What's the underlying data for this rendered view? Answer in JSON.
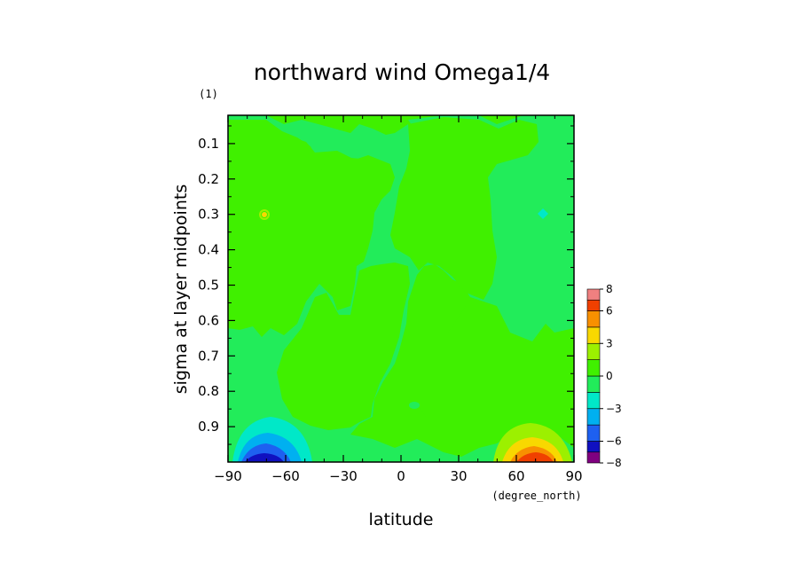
{
  "chart_data": {
    "type": "heatmap",
    "title": "northward wind Omega1/4",
    "xlabel": "latitude",
    "xunits": "(degree_north)",
    "ylabel": "sigma at layer midpoints",
    "yunits": "(1)",
    "x_ticks": [
      "-90",
      "-60",
      "-30",
      "0",
      "30",
      "60",
      "90"
    ],
    "y_ticks": [
      "0.1",
      "0.2",
      "0.3",
      "0.4",
      "0.5",
      "0.6",
      "0.7",
      "0.8",
      "0.9"
    ],
    "xlim": [
      -90,
      90
    ],
    "ylim": [
      1.0,
      0.02
    ],
    "y_inverted": true,
    "colorbar": {
      "levels": [
        -8,
        -7,
        -6,
        -4.5,
        -3,
        -1.5,
        0,
        1.5,
        3,
        4.5,
        6,
        7,
        8
      ],
      "tick_labels": [
        "8",
        "6",
        "3",
        "0",
        "-3",
        "-6",
        "-8"
      ],
      "colors": [
        "#800080",
        "#1010c0",
        "#1e60f0",
        "#00b0f0",
        "#00e8c8",
        "#22ec5a",
        "#40f000",
        "#9cf000",
        "#f8d800",
        "#f89000",
        "#f04000",
        "#f08080"
      ]
    },
    "background_range": [
      -1.5,
      1.5
    ],
    "features": [
      {
        "name": "southern low-level minimum",
        "lat": -70,
        "sigma": 0.99,
        "value": -6.5
      },
      {
        "name": "northern low-level maximum",
        "lat": 70,
        "sigma": 0.99,
        "value": 6.5
      },
      {
        "name": "isolated positive spot",
        "lat": -70,
        "sigma": 0.3,
        "value": 2
      },
      {
        "name": "isolated negative spot",
        "lat": 72,
        "sigma": 0.3,
        "value": -2
      }
    ]
  }
}
